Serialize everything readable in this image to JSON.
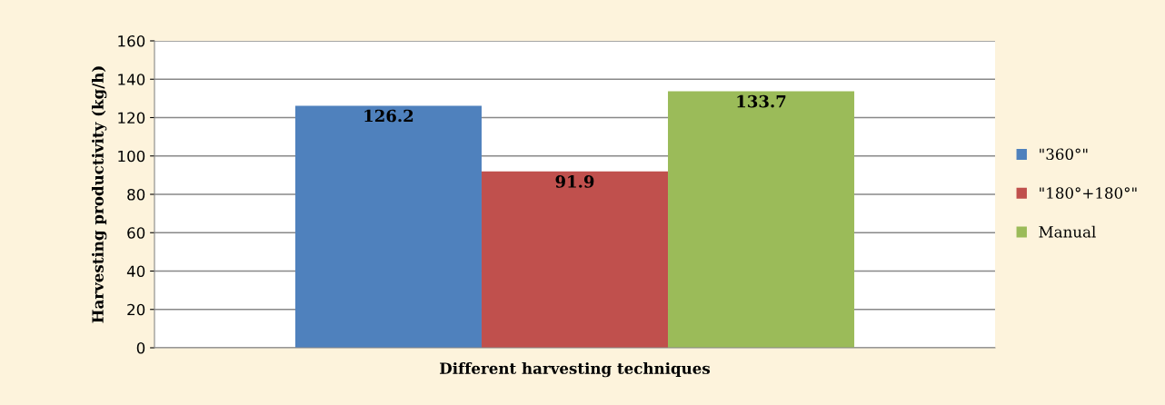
{
  "chart_data": {
    "type": "bar",
    "xlabel": "Different harvesting techniques",
    "ylabel": "Harvesting productivity (kg/h)",
    "categories": [
      null
    ],
    "series": [
      {
        "name": "\"360°\"",
        "color": "#4f81bd",
        "values": [
          126.2
        ]
      },
      {
        "name": "\"180°+180°\"",
        "color": "#c0504d",
        "values": [
          91.9
        ]
      },
      {
        "name": "Manual",
        "color": "#9bbb59",
        "values": [
          133.7
        ]
      }
    ],
    "ylim": [
      0,
      160
    ],
    "yticks": [
      0,
      20,
      40,
      60,
      80,
      100,
      120,
      140,
      160
    ],
    "grid": "y",
    "legend": "right",
    "data_labels": true
  }
}
